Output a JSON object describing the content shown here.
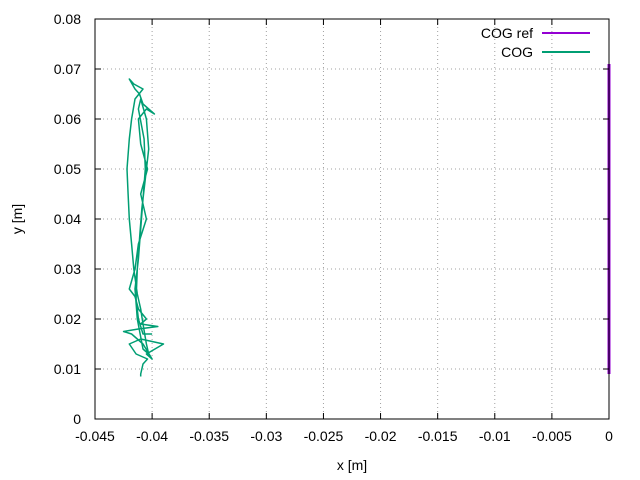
{
  "chart_data": {
    "type": "line",
    "xlabel": "x [m]",
    "ylabel": "y [m]",
    "xlim": [
      -0.045,
      0.0
    ],
    "ylim": [
      0.0,
      0.08
    ],
    "xticks": [
      -0.045,
      -0.04,
      -0.035,
      -0.03,
      -0.025,
      -0.02,
      -0.015,
      -0.01,
      -0.005,
      0
    ],
    "xtick_labels": [
      "-0.045",
      "-0.04",
      "-0.035",
      "-0.03",
      "-0.025",
      "-0.02",
      "-0.015",
      "-0.01",
      "-0.005",
      "0"
    ],
    "yticks": [
      0,
      0.01,
      0.02,
      0.03,
      0.04,
      0.05,
      0.06,
      0.07,
      0.08
    ],
    "ytick_labels": [
      "0",
      "0.01",
      "0.02",
      "0.03",
      "0.04",
      "0.05",
      "0.06",
      "0.07",
      "0.08"
    ],
    "grid": true,
    "legend_position": "top-right",
    "series": [
      {
        "name": "COG ref",
        "color": "#9400d3",
        "points": [
          [
            0.0,
            0.071
          ],
          [
            0.0,
            0.06
          ],
          [
            0.0,
            0.05
          ],
          [
            0.0,
            0.04
          ],
          [
            0.0,
            0.03
          ],
          [
            0.0,
            0.02
          ],
          [
            0.0,
            0.015
          ],
          [
            0.0,
            0.009
          ]
        ]
      },
      {
        "name": "COG",
        "color": "#009e73",
        "points": [
          [
            -0.041,
            0.0085
          ],
          [
            -0.041,
            0.009
          ],
          [
            -0.0408,
            0.011
          ],
          [
            -0.0404,
            0.012
          ],
          [
            -0.0414,
            0.013
          ],
          [
            -0.042,
            0.015
          ],
          [
            -0.041,
            0.016
          ],
          [
            -0.039,
            0.015
          ],
          [
            -0.0405,
            0.013
          ],
          [
            -0.04,
            0.012
          ],
          [
            -0.0408,
            0.015
          ],
          [
            -0.0418,
            0.017
          ],
          [
            -0.0425,
            0.0175
          ],
          [
            -0.0412,
            0.018
          ],
          [
            -0.0395,
            0.0185
          ],
          [
            -0.041,
            0.019
          ],
          [
            -0.0405,
            0.02
          ],
          [
            -0.0412,
            0.022
          ],
          [
            -0.0415,
            0.0245
          ],
          [
            -0.042,
            0.026
          ],
          [
            -0.0415,
            0.03
          ],
          [
            -0.0412,
            0.035
          ],
          [
            -0.0405,
            0.04
          ],
          [
            -0.041,
            0.045
          ],
          [
            -0.0404,
            0.05
          ],
          [
            -0.041,
            0.055
          ],
          [
            -0.0412,
            0.06
          ],
          [
            -0.0405,
            0.062
          ],
          [
            -0.0398,
            0.061
          ],
          [
            -0.0408,
            0.063
          ],
          [
            -0.0411,
            0.065
          ],
          [
            -0.0415,
            0.066
          ],
          [
            -0.042,
            0.068
          ],
          [
            -0.0416,
            0.067
          ],
          [
            -0.0408,
            0.066
          ],
          [
            -0.0415,
            0.064
          ],
          [
            -0.0418,
            0.06
          ],
          [
            -0.042,
            0.056
          ],
          [
            -0.0422,
            0.05
          ],
          [
            -0.0421,
            0.045
          ],
          [
            -0.042,
            0.04
          ],
          [
            -0.0418,
            0.035
          ],
          [
            -0.0416,
            0.03
          ],
          [
            -0.0413,
            0.025
          ],
          [
            -0.041,
            0.022
          ],
          [
            -0.0408,
            0.019
          ],
          [
            -0.0405,
            0.015
          ],
          [
            -0.0403,
            0.013
          ],
          [
            -0.0408,
            0.014
          ],
          [
            -0.0413,
            0.02
          ],
          [
            -0.0415,
            0.026
          ],
          [
            -0.0412,
            0.032
          ],
          [
            -0.041,
            0.038
          ],
          [
            -0.0408,
            0.044
          ],
          [
            -0.0406,
            0.05
          ],
          [
            -0.0407,
            0.056
          ],
          [
            -0.0412,
            0.062
          ],
          [
            -0.041,
            0.064
          ],
          [
            -0.0405,
            0.06
          ],
          [
            -0.0403,
            0.054
          ],
          [
            -0.0406,
            0.048
          ],
          [
            -0.0409,
            0.042
          ],
          [
            -0.0411,
            0.036
          ],
          [
            -0.0413,
            0.03
          ],
          [
            -0.0414,
            0.024
          ],
          [
            -0.0412,
            0.02
          ],
          [
            -0.0408,
            0.017
          ],
          [
            -0.04,
            0.017
          ]
        ]
      }
    ]
  }
}
